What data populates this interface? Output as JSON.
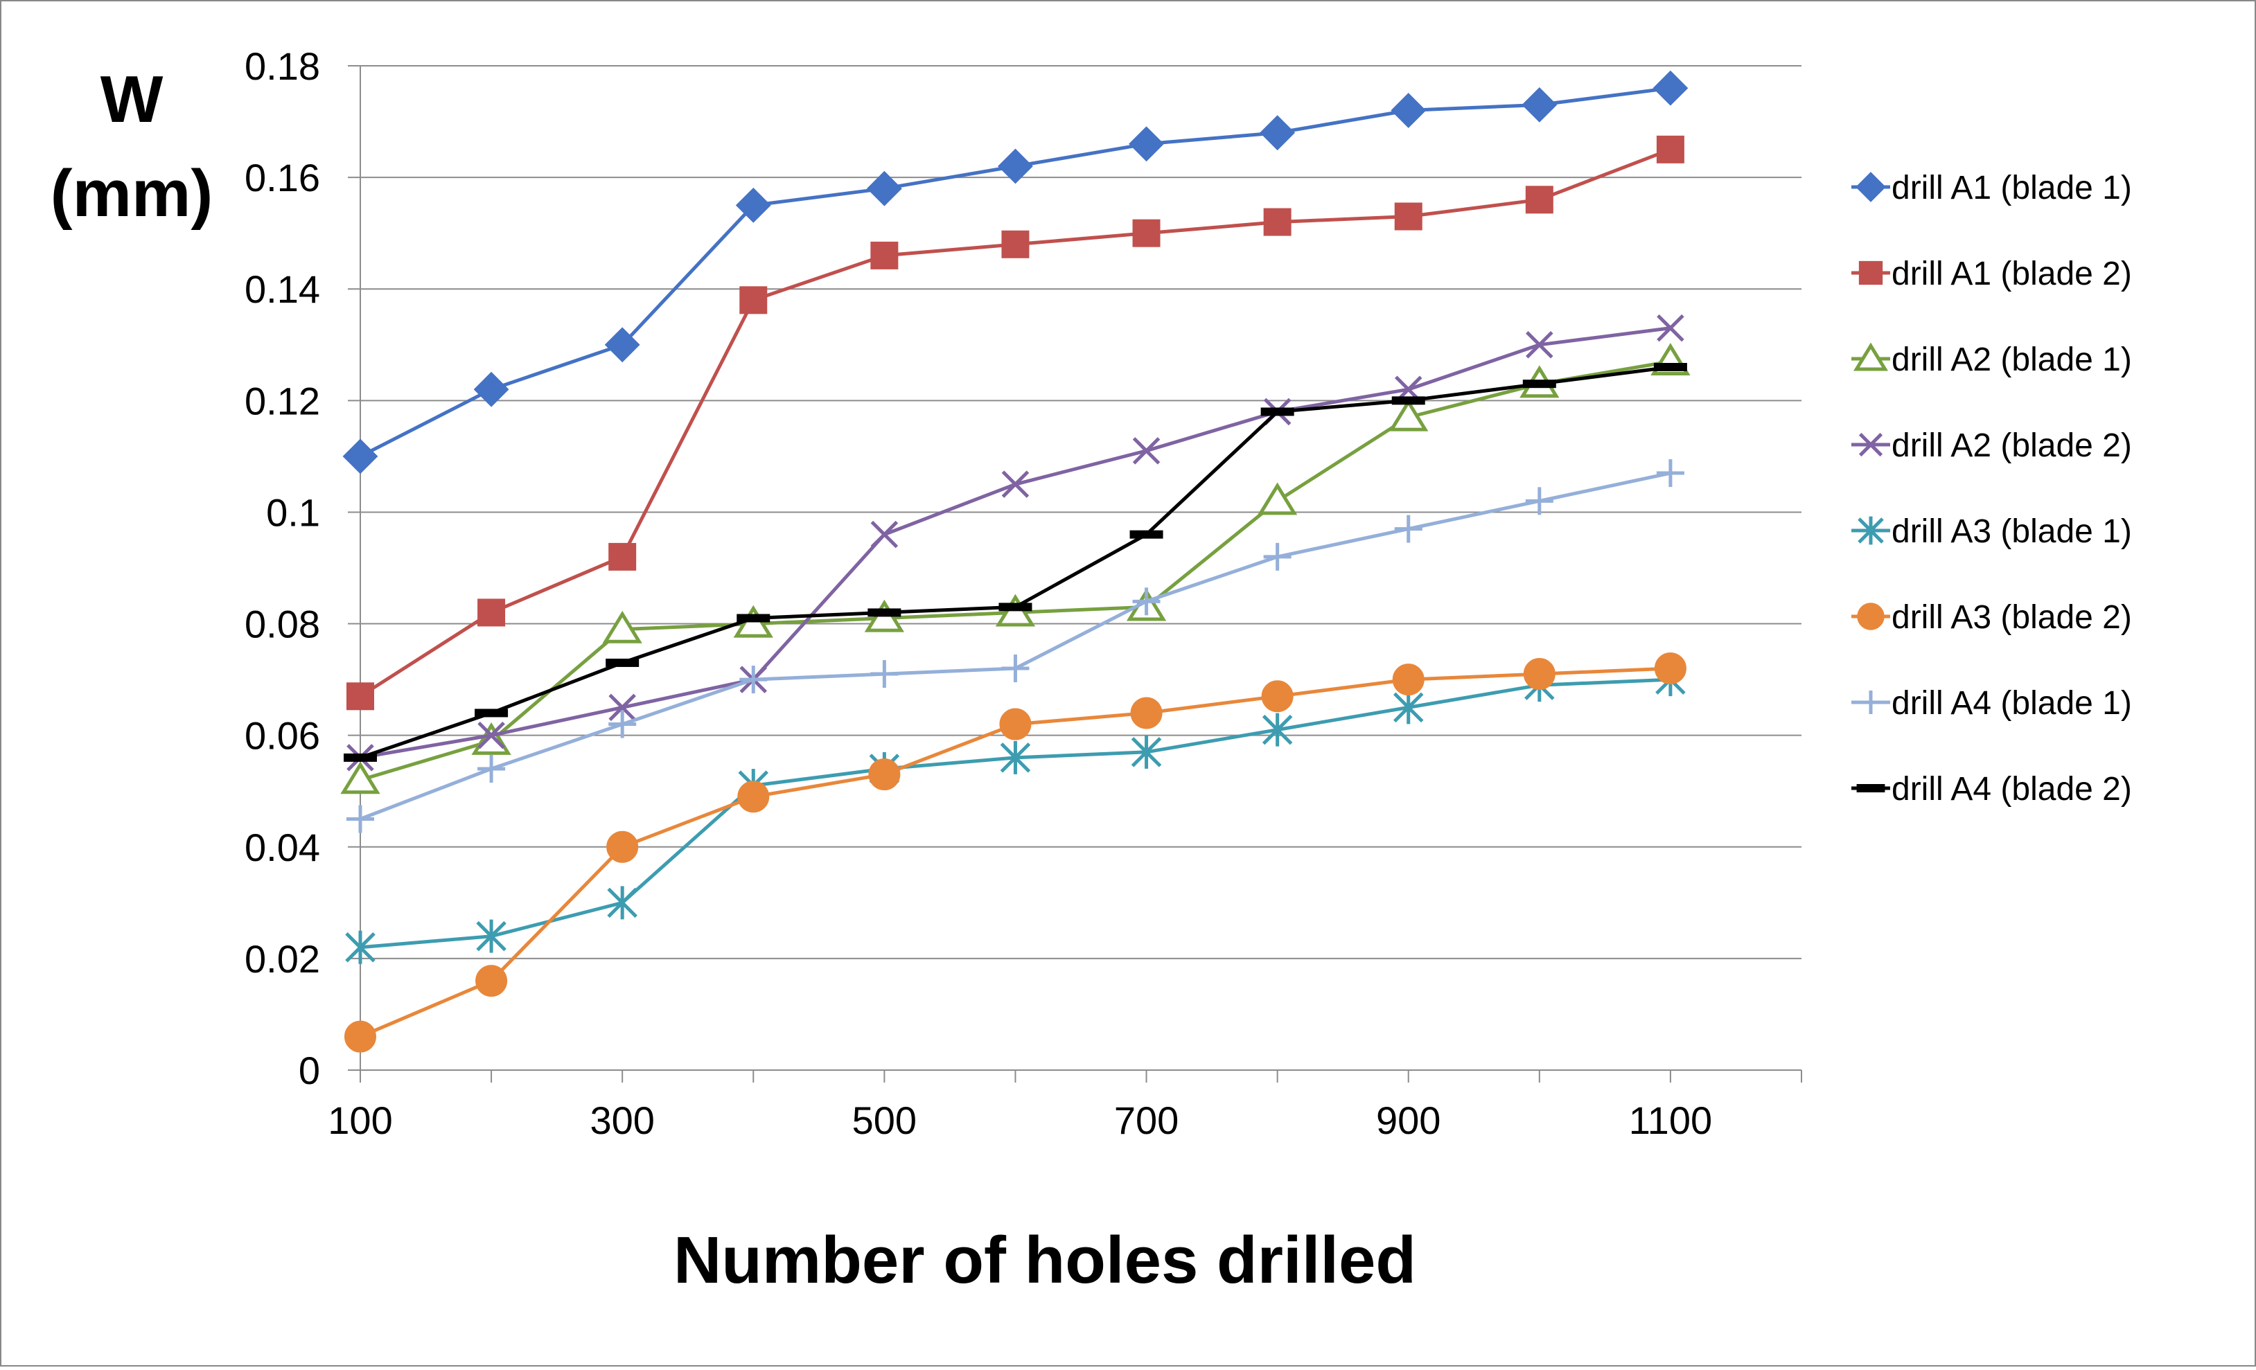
{
  "chart_data": {
    "type": "line",
    "title": "",
    "ylabel_lines": [
      "W",
      "(mm)"
    ],
    "xlabel": "Number of holes drilled",
    "x": [
      100,
      200,
      300,
      400,
      500,
      600,
      700,
      800,
      900,
      1000,
      1100
    ],
    "xlim": [
      100,
      1200
    ],
    "xticks": [
      100,
      300,
      500,
      700,
      900,
      1100
    ],
    "ylim": [
      0,
      0.18
    ],
    "yticks": [
      0,
      0.02,
      0.04,
      0.06,
      0.08,
      0.1,
      0.12,
      0.14,
      0.16,
      0.18
    ],
    "ytick_labels": [
      "0",
      "0.02",
      "0.04",
      "0.06",
      "0.08",
      "0.1",
      "0.12",
      "0.14",
      "0.16",
      "0.18"
    ],
    "grid": "horizontal",
    "legend_position": "right",
    "series": [
      {
        "name": "drill A1 (blade 1)",
        "marker": "diamond",
        "color": "#4472C4",
        "values": [
          0.11,
          0.122,
          0.13,
          0.155,
          0.158,
          0.162,
          0.166,
          0.168,
          0.172,
          0.173,
          0.176
        ]
      },
      {
        "name": "drill A1 (blade 2)",
        "marker": "square",
        "color": "#C0504D",
        "values": [
          0.067,
          0.082,
          0.092,
          0.138,
          0.146,
          0.148,
          0.15,
          0.152,
          0.153,
          0.156,
          0.165
        ]
      },
      {
        "name": "drill A2 (blade 1)",
        "marker": "triangle",
        "color": "#77A03F",
        "values": [
          0.052,
          0.059,
          0.079,
          0.08,
          0.081,
          0.082,
          0.083,
          0.102,
          0.117,
          0.123,
          0.127
        ]
      },
      {
        "name": "drill A2 (blade 2)",
        "marker": "x",
        "color": "#7F63A2",
        "values": [
          0.056,
          0.06,
          0.065,
          0.07,
          0.096,
          0.105,
          0.111,
          0.118,
          0.122,
          0.13,
          0.133
        ]
      },
      {
        "name": "drill A3 (blade 1)",
        "marker": "asterisk",
        "color": "#3D9CB0",
        "values": [
          0.022,
          0.024,
          0.03,
          0.051,
          0.054,
          0.056,
          0.057,
          0.061,
          0.065,
          0.069,
          0.07
        ]
      },
      {
        "name": "drill A3 (blade 2)",
        "marker": "circle",
        "color": "#E8873A",
        "values": [
          0.006,
          0.016,
          0.04,
          0.049,
          0.053,
          0.062,
          0.064,
          0.067,
          0.07,
          0.071,
          0.072
        ]
      },
      {
        "name": "drill A4 (blade 1)",
        "marker": "plus",
        "color": "#94AFD9",
        "values": [
          0.045,
          0.054,
          0.062,
          0.07,
          0.071,
          0.072,
          0.084,
          0.092,
          0.097,
          0.102,
          0.107
        ]
      },
      {
        "name": "drill A4 (blade 2)",
        "marker": "dash",
        "color": "#000000",
        "values": [
          0.056,
          0.064,
          0.073,
          0.081,
          0.082,
          0.083,
          0.096,
          0.118,
          0.12,
          0.123,
          0.126
        ]
      }
    ]
  }
}
